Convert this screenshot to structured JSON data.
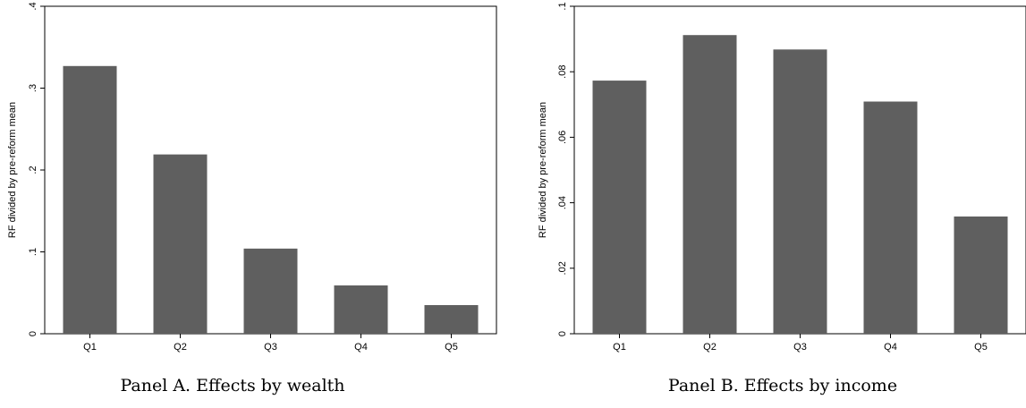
{
  "chart_data": [
    {
      "type": "bar",
      "caption": "Panel A. Effects by wealth",
      "ylabel": "RF divided by pre-reform mean",
      "xlabel": "",
      "categories": [
        "Q1",
        "Q2",
        "Q3",
        "Q4",
        "Q5"
      ],
      "values": [
        0.327,
        0.219,
        0.104,
        0.059,
        0.035
      ],
      "ylim": [
        0,
        0.4
      ],
      "yticks": [
        0,
        0.1,
        0.2,
        0.3,
        0.4
      ],
      "ytick_labels": [
        "0",
        ".1",
        ".2",
        ".3",
        ".4"
      ],
      "bar_color": "#5f5f5f",
      "grid": false
    },
    {
      "type": "bar",
      "caption": "Panel B. Effects by income",
      "ylabel": "RF divided by pre-reform mean",
      "xlabel": "",
      "categories": [
        "Q1",
        "Q2",
        "Q3",
        "Q4",
        "Q5"
      ],
      "values": [
        0.0773,
        0.0912,
        0.0868,
        0.0709,
        0.0358
      ],
      "ylim": [
        0,
        0.1
      ],
      "yticks": [
        0,
        0.02,
        0.04,
        0.06,
        0.08,
        0.1
      ],
      "ytick_labels": [
        "0",
        ".02",
        ".04",
        ".06",
        ".08",
        ".1"
      ],
      "bar_color": "#5f5f5f",
      "grid": false
    }
  ]
}
